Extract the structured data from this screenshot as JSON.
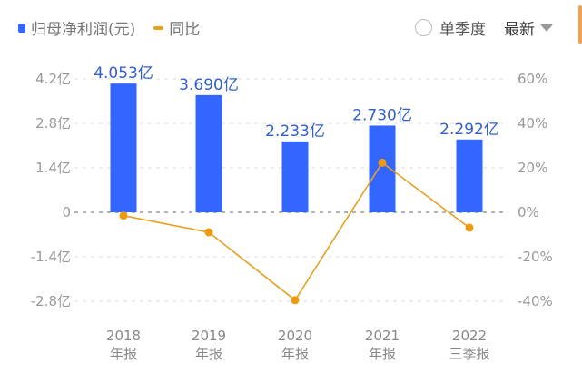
{
  "legend": {
    "bar_series": "归母净利润(元)",
    "line_series": "同比"
  },
  "controls": {
    "quarterly_label": "单季度",
    "sort_label": "最新"
  },
  "colors": {
    "bar": "#3366ff",
    "line": "#e8a020",
    "scrollbar": "#f0a050"
  },
  "chart_data": {
    "type": "bar+line",
    "categories": [
      [
        "2018",
        "年报"
      ],
      [
        "2019",
        "年报"
      ],
      [
        "2020",
        "年报"
      ],
      [
        "2021",
        "年报"
      ],
      [
        "2022",
        "三季报"
      ]
    ],
    "series": [
      {
        "name": "归母净利润(元)",
        "type": "bar",
        "axis": "left",
        "values": [
          4.053,
          3.69,
          2.233,
          2.73,
          2.292
        ],
        "labels": [
          "4.053亿",
          "3.690亿",
          "2.233亿",
          "2.730亿",
          "2.292亿"
        ]
      },
      {
        "name": "同比",
        "type": "line",
        "axis": "right",
        "values": [
          -1.5,
          -9.0,
          -39.5,
          22.3,
          -6.9
        ]
      }
    ],
    "left_axis": {
      "ticks": [
        4.2,
        2.8,
        1.4,
        0,
        -1.4,
        -2.8
      ],
      "tick_labels": [
        "4.2亿",
        "2.8亿",
        "1.4亿",
        "0",
        "-1.4亿",
        "-2.8亿"
      ],
      "range": [
        -2.8,
        4.2
      ]
    },
    "right_axis": {
      "ticks": [
        60,
        40,
        20,
        0,
        -20,
        -40
      ],
      "tick_labels": [
        "60%",
        "40%",
        "20%",
        "0%",
        "-20%",
        "-40%"
      ],
      "range": [
        -40,
        60
      ]
    },
    "grid": true,
    "legend_position": "top-left"
  }
}
